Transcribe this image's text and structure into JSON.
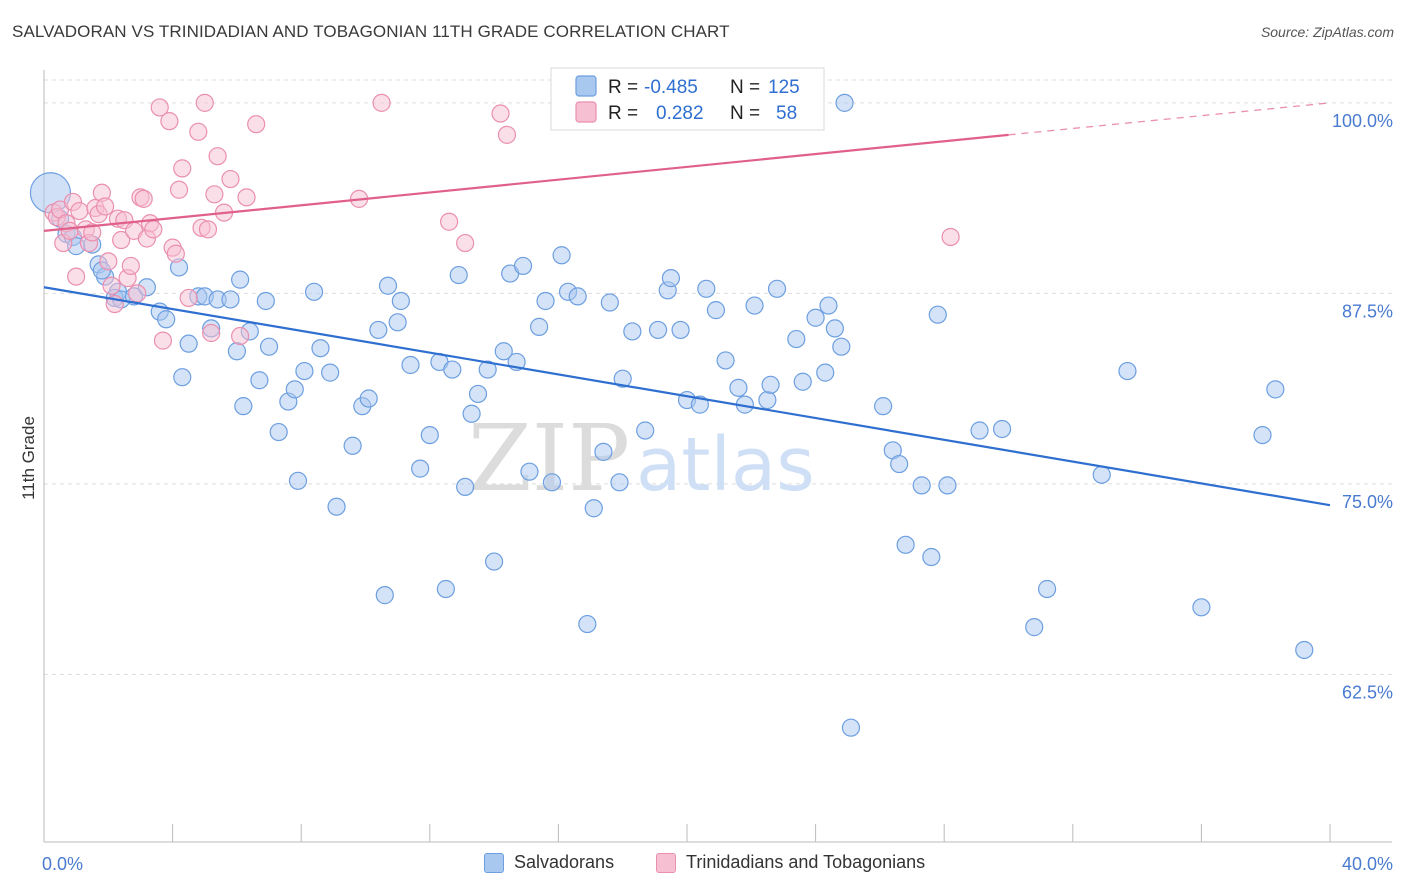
{
  "title": "SALVADORAN VS TRINIDADIAN AND TOBAGONIAN 11TH GRADE CORRELATION CHART",
  "source": "Source: ZipAtlas.com",
  "watermark": {
    "zip": "ZIP",
    "atlas": "atlas"
  },
  "colors": {
    "blue_fill": "#a9c8f0",
    "blue_stroke": "#6d9fe0",
    "blue_line": "#2f6fd0",
    "pink_fill": "#f7bfd2",
    "pink_stroke": "#ea8fb0",
    "pink_line": "#e0608a",
    "tick_label": "#4a7bd0",
    "grid": "#dddddd"
  },
  "legend_stats": [
    {
      "r_label": "R =",
      "r_value": "-0.485",
      "n_label": "N =",
      "n_value": "125"
    },
    {
      "r_label": "R =",
      "r_value": "0.282",
      "n_label": "N =",
      "n_value": "58"
    }
  ],
  "bottom_legend": [
    "Salvadorans",
    "Trinidadians and Tobagonians"
  ],
  "chart_data": {
    "type": "scatter",
    "title": "SALVADORAN VS TRINIDADIAN AND TOBAGONIAN 11TH GRADE CORRELATION CHART",
    "xlabel": "",
    "ylabel": "11th Grade",
    "x_tick_labels": [
      "0.0%",
      "40.0%"
    ],
    "y_tick_labels": [
      "100.0%",
      "87.5%",
      "75.0%",
      "62.5%"
    ],
    "y_ticks": [
      100,
      87.5,
      75,
      62.5
    ],
    "xlim": [
      0,
      40
    ],
    "ylim": [
      51.5,
      101.5
    ],
    "grid": true,
    "legend_placement": "top-center",
    "series": [
      {
        "name": "Salvadorans",
        "r": -0.485,
        "n": 125,
        "trend": {
          "x": [
            0,
            40
          ],
          "y": [
            87.9,
            73.6
          ]
        },
        "points": [
          [
            0.2,
            94.1
          ],
          [
            0.5,
            92.4
          ],
          [
            0.7,
            91.4
          ],
          [
            0.9,
            91.2
          ],
          [
            1.0,
            90.6
          ],
          [
            1.5,
            90.7
          ],
          [
            1.7,
            89.4
          ],
          [
            1.9,
            88.6
          ],
          [
            1.8,
            89.0
          ],
          [
            2.3,
            87.6
          ],
          [
            2.2,
            87.2
          ],
          [
            2.4,
            87.1
          ],
          [
            2.8,
            87.3
          ],
          [
            3.2,
            87.9
          ],
          [
            3.6,
            86.3
          ],
          [
            3.8,
            85.8
          ],
          [
            4.2,
            89.2
          ],
          [
            4.3,
            82.0
          ],
          [
            4.5,
            84.2
          ],
          [
            4.8,
            87.3
          ],
          [
            5.0,
            87.3
          ],
          [
            5.2,
            85.2
          ],
          [
            5.4,
            87.1
          ],
          [
            5.8,
            87.1
          ],
          [
            6.0,
            83.7
          ],
          [
            6.1,
            88.4
          ],
          [
            6.2,
            80.1
          ],
          [
            6.4,
            85.0
          ],
          [
            6.7,
            81.8
          ],
          [
            6.9,
            87.0
          ],
          [
            7.0,
            84.0
          ],
          [
            7.3,
            78.4
          ],
          [
            7.6,
            80.4
          ],
          [
            7.8,
            81.2
          ],
          [
            7.9,
            75.2
          ],
          [
            8.1,
            82.4
          ],
          [
            8.4,
            87.6
          ],
          [
            8.6,
            83.9
          ],
          [
            8.9,
            82.3
          ],
          [
            9.1,
            73.5
          ],
          [
            9.6,
            77.5
          ],
          [
            9.9,
            80.1
          ],
          [
            10.1,
            80.6
          ],
          [
            10.4,
            85.1
          ],
          [
            10.6,
            67.7
          ],
          [
            10.7,
            88.0
          ],
          [
            11.0,
            85.6
          ],
          [
            11.1,
            87.0
          ],
          [
            11.4,
            82.8
          ],
          [
            11.7,
            76.0
          ],
          [
            12.0,
            78.2
          ],
          [
            12.3,
            83.0
          ],
          [
            12.5,
            68.1
          ],
          [
            12.7,
            82.5
          ],
          [
            12.9,
            88.7
          ],
          [
            13.1,
            74.8
          ],
          [
            13.3,
            79.6
          ],
          [
            13.5,
            80.9
          ],
          [
            13.8,
            82.5
          ],
          [
            14.0,
            69.9
          ],
          [
            14.3,
            83.7
          ],
          [
            14.5,
            88.8
          ],
          [
            14.7,
            83.0
          ],
          [
            14.9,
            89.3
          ],
          [
            15.1,
            75.8
          ],
          [
            15.4,
            85.3
          ],
          [
            15.6,
            87.0
          ],
          [
            15.8,
            75.1
          ],
          [
            16.1,
            90.0
          ],
          [
            16.3,
            87.6
          ],
          [
            16.6,
            87.3
          ],
          [
            16.9,
            65.8
          ],
          [
            17.1,
            73.4
          ],
          [
            17.4,
            77.1
          ],
          [
            17.6,
            86.9
          ],
          [
            17.9,
            75.1
          ],
          [
            18.0,
            81.9
          ],
          [
            18.3,
            85.0
          ],
          [
            18.7,
            78.5
          ],
          [
            19.1,
            85.1
          ],
          [
            19.4,
            87.7
          ],
          [
            19.5,
            88.5
          ],
          [
            19.8,
            85.1
          ],
          [
            20.0,
            80.5
          ],
          [
            20.4,
            80.2
          ],
          [
            20.6,
            87.8
          ],
          [
            20.9,
            86.4
          ],
          [
            21.2,
            83.1
          ],
          [
            21.6,
            81.3
          ],
          [
            21.8,
            80.2
          ],
          [
            22.1,
            86.7
          ],
          [
            22.5,
            80.5
          ],
          [
            22.6,
            81.5
          ],
          [
            22.8,
            87.8
          ],
          [
            23.4,
            84.5
          ],
          [
            23.6,
            81.7
          ],
          [
            24.0,
            85.9
          ],
          [
            24.3,
            82.3
          ],
          [
            24.4,
            86.7
          ],
          [
            24.6,
            85.2
          ],
          [
            24.8,
            84.0
          ],
          [
            24.9,
            100.0
          ],
          [
            25.1,
            59.0
          ],
          [
            26.1,
            80.1
          ],
          [
            26.4,
            77.2
          ],
          [
            26.6,
            76.3
          ],
          [
            26.8,
            71.0
          ],
          [
            27.3,
            74.9
          ],
          [
            27.6,
            70.2
          ],
          [
            27.8,
            86.1
          ],
          [
            28.1,
            74.9
          ],
          [
            29.1,
            78.5
          ],
          [
            29.8,
            78.6
          ],
          [
            30.8,
            65.6
          ],
          [
            31.2,
            68.1
          ],
          [
            32.9,
            75.6
          ],
          [
            33.7,
            82.4
          ],
          [
            36.0,
            66.9
          ],
          [
            37.9,
            78.2
          ],
          [
            38.3,
            81.2
          ],
          [
            39.2,
            64.1
          ]
        ]
      },
      {
        "name": "Trinidadians and Tobagonians",
        "r": 0.282,
        "n": 58,
        "trend": {
          "x": [
            0,
            30
          ],
          "y": [
            91.6,
            97.9
          ]
        },
        "trend_dashed": {
          "x": [
            30,
            40
          ],
          "y": [
            97.9,
            100.0
          ]
        },
        "points": [
          [
            0.3,
            92.8
          ],
          [
            0.4,
            92.5
          ],
          [
            0.5,
            93.0
          ],
          [
            0.6,
            90.8
          ],
          [
            0.7,
            92.1
          ],
          [
            0.8,
            91.6
          ],
          [
            0.9,
            93.5
          ],
          [
            1.0,
            88.6
          ],
          [
            1.1,
            92.9
          ],
          [
            1.3,
            91.7
          ],
          [
            1.4,
            90.8
          ],
          [
            1.5,
            91.5
          ],
          [
            1.6,
            93.1
          ],
          [
            1.7,
            92.7
          ],
          [
            1.8,
            94.1
          ],
          [
            1.9,
            93.2
          ],
          [
            2.0,
            89.6
          ],
          [
            2.1,
            88.0
          ],
          [
            2.2,
            86.8
          ],
          [
            2.3,
            92.4
          ],
          [
            2.4,
            91.0
          ],
          [
            2.5,
            92.3
          ],
          [
            2.6,
            88.5
          ],
          [
            2.7,
            89.3
          ],
          [
            2.8,
            91.6
          ],
          [
            2.9,
            87.5
          ],
          [
            3.0,
            93.8
          ],
          [
            3.1,
            93.7
          ],
          [
            3.2,
            91.1
          ],
          [
            3.3,
            92.1
          ],
          [
            3.4,
            91.7
          ],
          [
            3.6,
            99.7
          ],
          [
            3.7,
            84.4
          ],
          [
            3.9,
            98.8
          ],
          [
            4.0,
            90.5
          ],
          [
            4.1,
            90.1
          ],
          [
            4.2,
            94.3
          ],
          [
            4.3,
            95.7
          ],
          [
            4.5,
            87.2
          ],
          [
            4.8,
            98.1
          ],
          [
            4.9,
            91.8
          ],
          [
            5.0,
            100.0
          ],
          [
            5.1,
            91.7
          ],
          [
            5.2,
            84.9
          ],
          [
            5.3,
            94.0
          ],
          [
            5.4,
            96.5
          ],
          [
            5.6,
            92.8
          ],
          [
            5.8,
            95.0
          ],
          [
            6.1,
            84.7
          ],
          [
            6.3,
            93.8
          ],
          [
            6.6,
            98.6
          ],
          [
            9.8,
            93.7
          ],
          [
            10.5,
            100.0
          ],
          [
            12.6,
            92.2
          ],
          [
            13.1,
            90.8
          ],
          [
            14.2,
            99.3
          ],
          [
            14.4,
            97.9
          ],
          [
            28.2,
            91.2
          ]
        ]
      }
    ]
  }
}
